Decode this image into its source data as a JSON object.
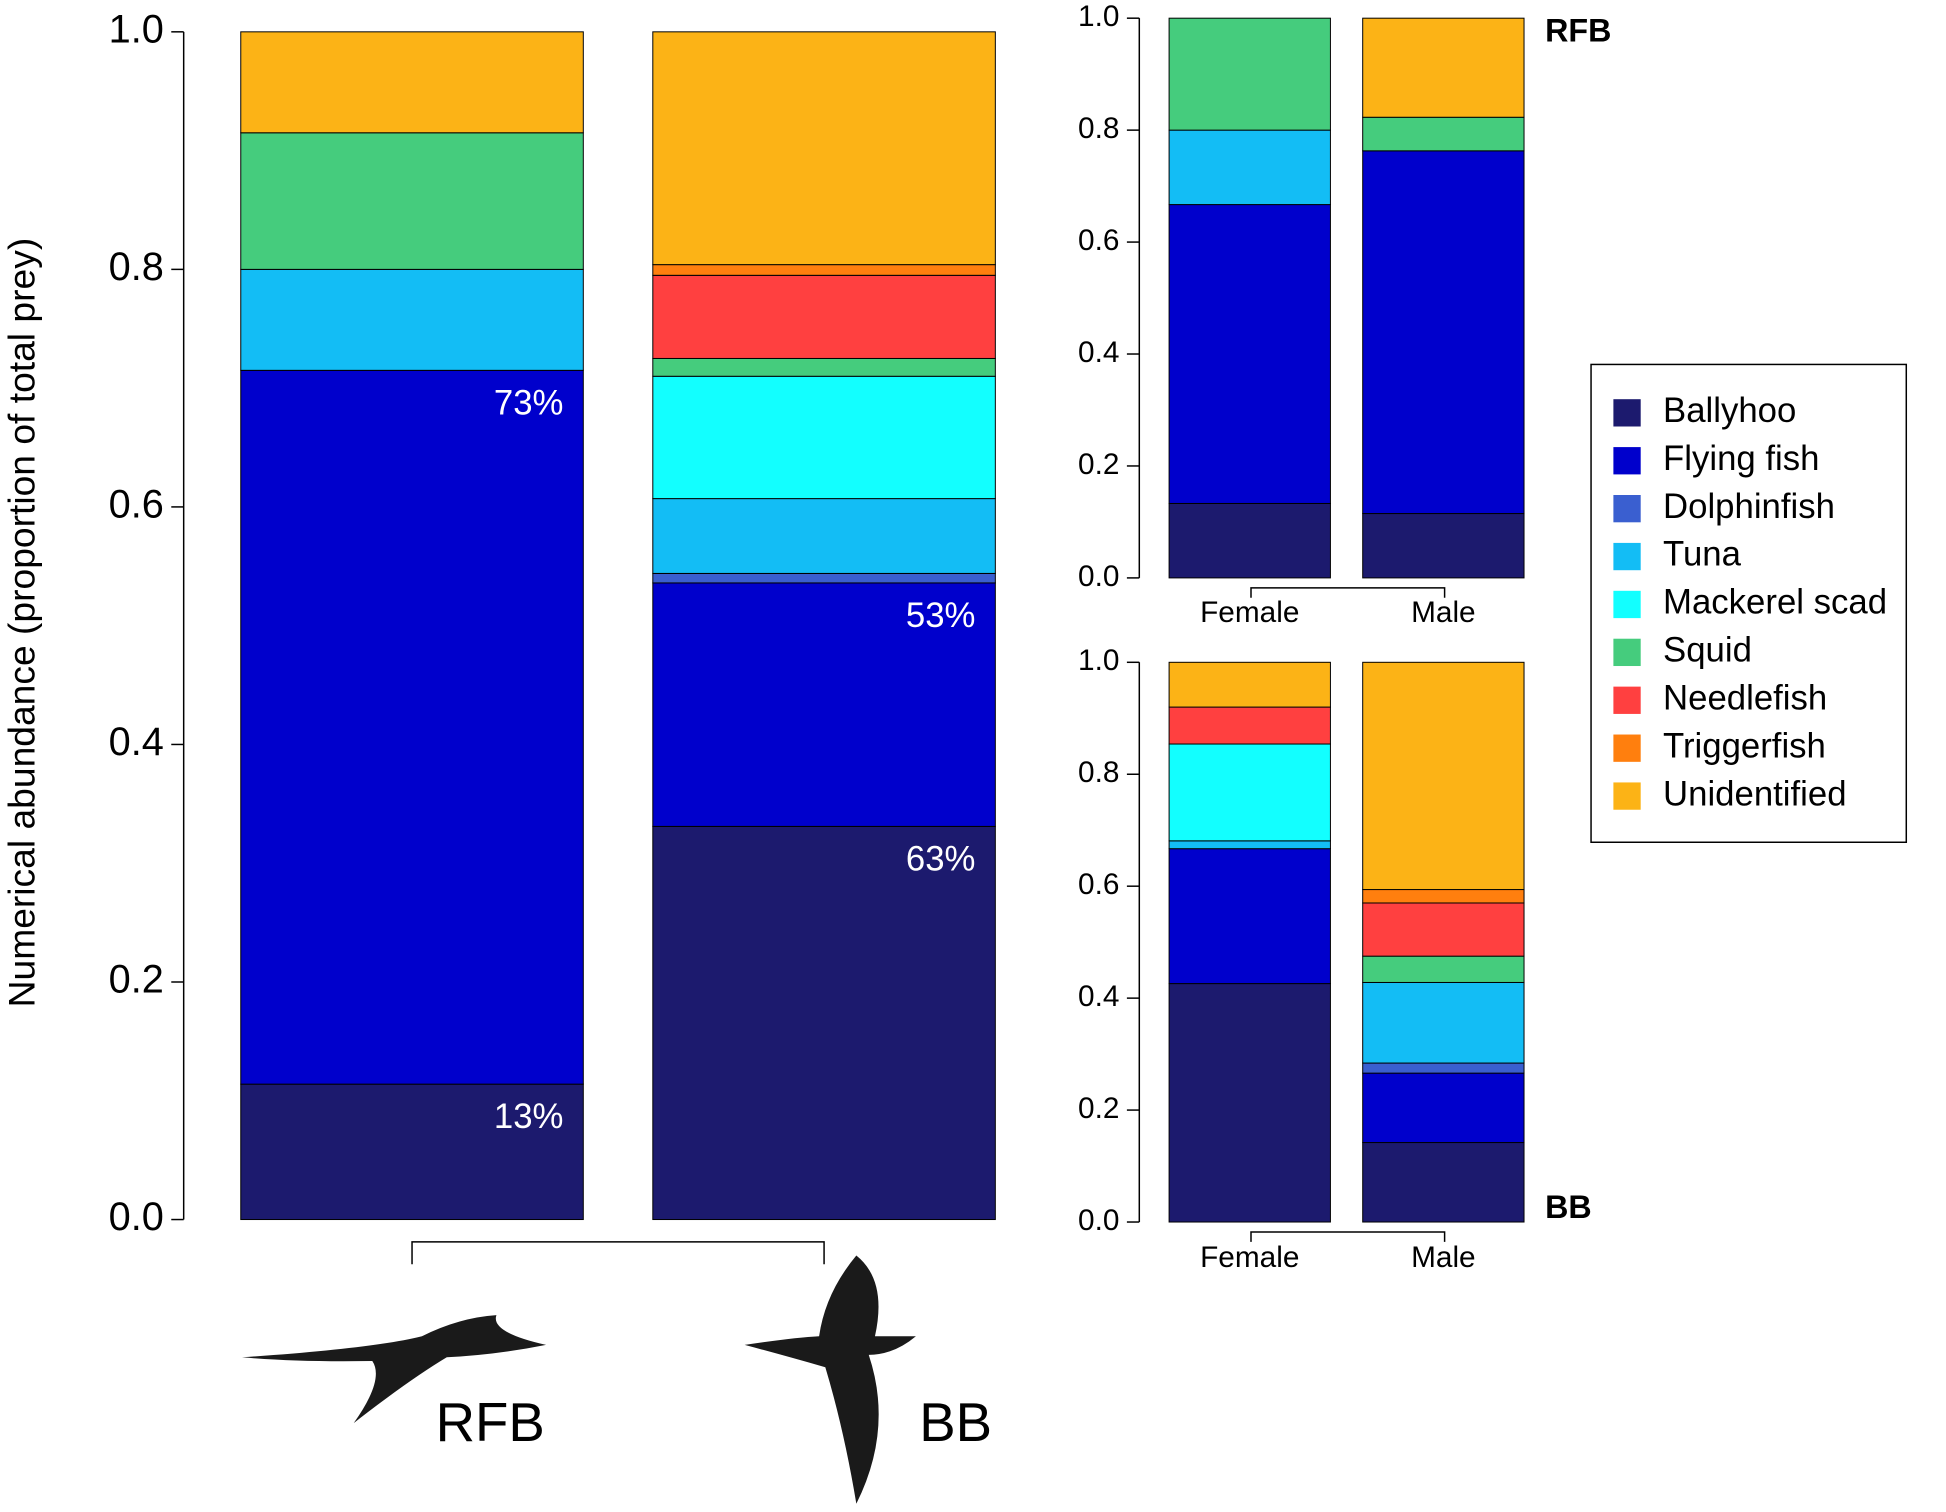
{
  "chart_data": [
    {
      "type": "stacked-bar",
      "y_label": "Numerical abundance (proportion of total prey)",
      "categories": [
        "RFB",
        "BB"
      ],
      "series": [
        {
          "name": "Ballyhoo",
          "color": "#1c1a6e",
          "values": [
            0.114,
            0.331
          ]
        },
        {
          "name": "Flying fish",
          "color": "#0000cc",
          "values": [
            0.601,
            0.205
          ]
        },
        {
          "name": "Dolphinfish",
          "color": "#3a5fd0",
          "values": [
            0,
            0.008
          ]
        },
        {
          "name": "Tuna",
          "color": "#13bdf5",
          "values": [
            0.085,
            0.063
          ]
        },
        {
          "name": "Mackerel scad",
          "color": "#12ffff",
          "values": [
            0,
            0.103
          ]
        },
        {
          "name": "Squid",
          "color": "#45cc7d",
          "values": [
            0.115,
            0.015
          ]
        },
        {
          "name": "Needlefish",
          "color": "#ff4040",
          "values": [
            0,
            0.07
          ]
        },
        {
          "name": "Triggerfish",
          "color": "#ff7f0e",
          "values": [
            0,
            0.009
          ]
        },
        {
          "name": "Unidentified",
          "color": "#fcb316",
          "values": [
            0.085,
            0.196
          ]
        }
      ],
      "annotations": [
        {
          "category": "RFB",
          "series": "Ballyhoo",
          "text": "13%"
        },
        {
          "category": "RFB",
          "series": "Flying fish",
          "text": "73%"
        },
        {
          "category": "BB",
          "series": "Ballyhoo",
          "text": "63%"
        },
        {
          "category": "BB",
          "series": "Flying fish",
          "text": "53%"
        }
      ],
      "ylim": [
        0,
        1
      ],
      "yticks": [
        {
          "value": 0,
          "label": "0.0"
        },
        {
          "value": 0.2,
          "label": "0.2"
        },
        {
          "value": 0.4,
          "label": "0.4"
        },
        {
          "value": 0.6,
          "label": "0.6"
        },
        {
          "value": 0.8,
          "label": "0.8"
        },
        {
          "value": 1,
          "label": "1.0"
        }
      ],
      "legend": "right"
    },
    {
      "type": "stacked-bar",
      "title": "RFB",
      "categories": [
        "Female",
        "Male"
      ],
      "series": [
        {
          "values": [
            0.133,
            0.115
          ]
        },
        {
          "values": [
            0.534,
            0.648
          ]
        },
        {
          "values": [
            0,
            0
          ]
        },
        {
          "values": [
            0.133,
            0
          ]
        },
        {
          "values": [
            0,
            0
          ]
        },
        {
          "values": [
            0.2,
            0.06
          ]
        },
        {
          "values": [
            0,
            0
          ]
        },
        {
          "values": [
            0,
            0
          ]
        },
        {
          "values": [
            0,
            0.177
          ]
        }
      ],
      "ylim": [
        0,
        1
      ],
      "yticks": [
        {
          "value": 0,
          "label": "0.0"
        },
        {
          "value": 0.2,
          "label": "0.2"
        },
        {
          "value": 0.4,
          "label": "0.4"
        },
        {
          "value": 0.6,
          "label": "0.6"
        },
        {
          "value": 0.8,
          "label": "0.8"
        },
        {
          "value": 1,
          "label": "1.0"
        }
      ]
    },
    {
      "type": "stacked-bar",
      "title": "BB",
      "categories": [
        "Female",
        "Male"
      ],
      "series": [
        {
          "values": [
            0.426,
            0.142
          ]
        },
        {
          "values": [
            0.241,
            0.124
          ]
        },
        {
          "values": [
            0,
            0.018
          ]
        },
        {
          "values": [
            0.014,
            0.144
          ]
        },
        {
          "values": [
            0.173,
            0
          ]
        },
        {
          "values": [
            0,
            0.047
          ]
        },
        {
          "values": [
            0.066,
            0.095
          ]
        },
        {
          "values": [
            0,
            0.024
          ]
        },
        {
          "values": [
            0.08,
            0.406
          ]
        }
      ],
      "ylim": [
        0,
        1
      ],
      "yticks": [
        {
          "value": 0,
          "label": "0.0"
        },
        {
          "value": 0.2,
          "label": "0.2"
        },
        {
          "value": 0.4,
          "label": "0.4"
        },
        {
          "value": 0.6,
          "label": "0.6"
        },
        {
          "value": 0.8,
          "label": "0.8"
        },
        {
          "value": 1,
          "label": "1.0"
        }
      ]
    }
  ]
}
